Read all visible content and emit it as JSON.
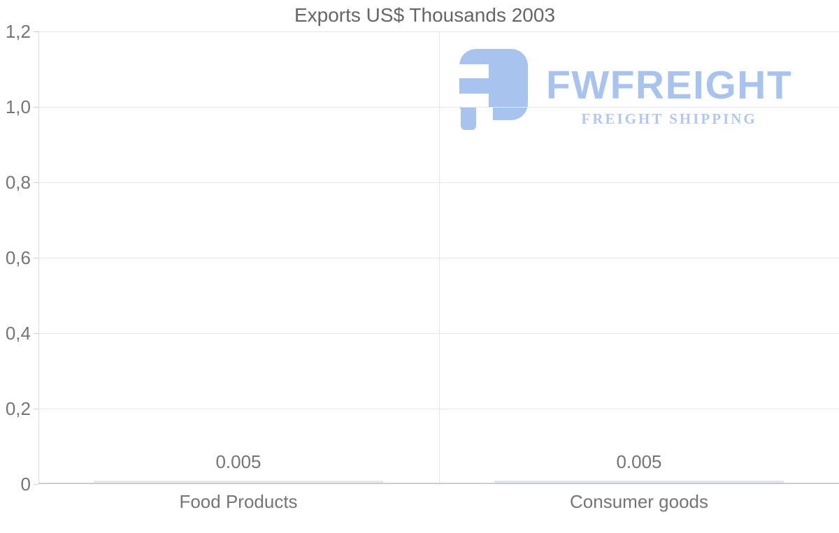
{
  "chart_data": {
    "type": "bar",
    "title": "Exports US$ Thousands 2003",
    "categories": [
      "Food Products",
      "Consumer goods"
    ],
    "values": [
      0.005,
      0.005
    ],
    "value_labels": [
      "0.005",
      "0.005"
    ],
    "bar_colors": [
      "#e8e8e8",
      "#dce7f3"
    ],
    "xlabel": "",
    "ylabel": "",
    "ylim": [
      0,
      1.2
    ],
    "yticks": [
      {
        "value": 0,
        "label": "0"
      },
      {
        "value": 0.2,
        "label": "0,2"
      },
      {
        "value": 0.4,
        "label": "0,4"
      },
      {
        "value": 0.6,
        "label": "0,6"
      },
      {
        "value": 0.8,
        "label": "0,8"
      },
      {
        "value": 1.0,
        "label": "1,0"
      },
      {
        "value": 1.2,
        "label": "1,2"
      }
    ],
    "grid": true,
    "legend": "none"
  },
  "watermark": {
    "icon": "fwfreight-logo-icon",
    "brand": "FWFREIGHT",
    "tagline": "FREIGHT SHIPPING",
    "brand_color": "#a8c3ee",
    "tagline_color": "#b2c8f0",
    "icon_color": "#a8c3ee"
  },
  "colors": {
    "title": "#666666",
    "axis_labels": "#757575",
    "gridline": "#e6e6e6",
    "axis_line": "#cccccc"
  }
}
